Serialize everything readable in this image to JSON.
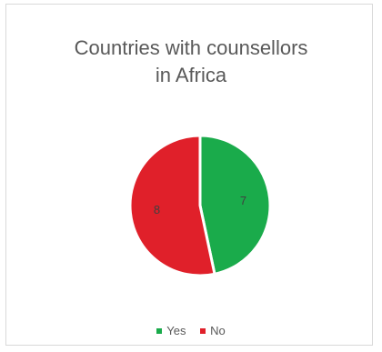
{
  "chart_data": {
    "type": "pie",
    "title_lines": [
      "Countries with counsellors",
      "in Africa"
    ],
    "categories": [
      "Yes",
      "No"
    ],
    "values": [
      7,
      8
    ],
    "colors": [
      "#1aab4b",
      "#e0202a"
    ],
    "data_labels": [
      "7",
      "8"
    ],
    "legend_position": "bottom"
  }
}
